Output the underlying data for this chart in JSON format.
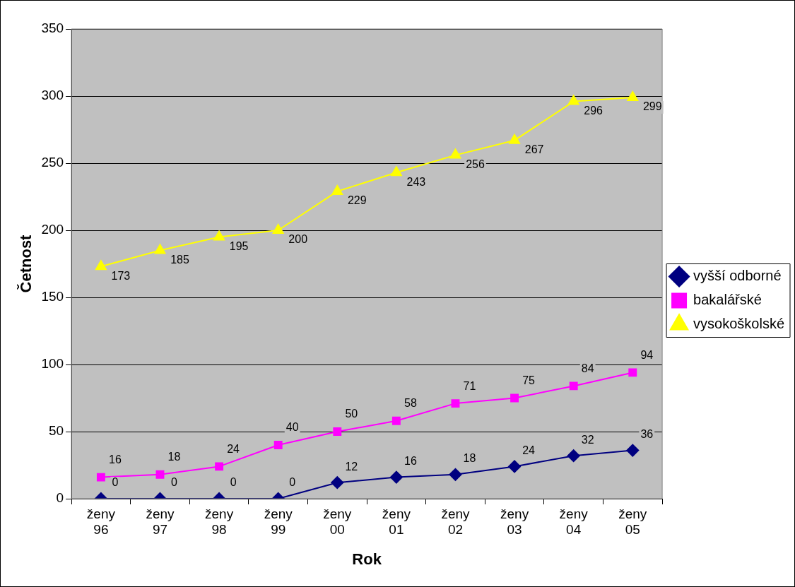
{
  "chart_data": {
    "type": "line",
    "xlabel": "Rok",
    "ylabel": "Četnost",
    "categories": [
      "ženy 96",
      "ženy 97",
      "ženy 98",
      "ženy 99",
      "ženy 00",
      "ženy 01",
      "ženy 02",
      "ženy 03",
      "ženy 04",
      "ženy 05"
    ],
    "series": [
      {
        "name": "vyšší odborné",
        "color": "#000080",
        "marker": "diamond",
        "values": [
          0,
          0,
          0,
          0,
          12,
          16,
          18,
          24,
          32,
          36
        ]
      },
      {
        "name": "bakalářské",
        "color": "#ff00ff",
        "marker": "square",
        "values": [
          16,
          18,
          24,
          40,
          50,
          58,
          71,
          75,
          84,
          94
        ]
      },
      {
        "name": "vysokoškolské",
        "color": "#ffff00",
        "marker": "triangle",
        "values": [
          173,
          185,
          195,
          200,
          229,
          243,
          256,
          267,
          296,
          299
        ]
      }
    ],
    "ylim": [
      0,
      350
    ],
    "yticks": [
      0,
      50,
      100,
      150,
      200,
      250,
      300,
      350
    ],
    "grid": "y",
    "legend": "right",
    "data_labels": true,
    "line_style": "solid"
  }
}
